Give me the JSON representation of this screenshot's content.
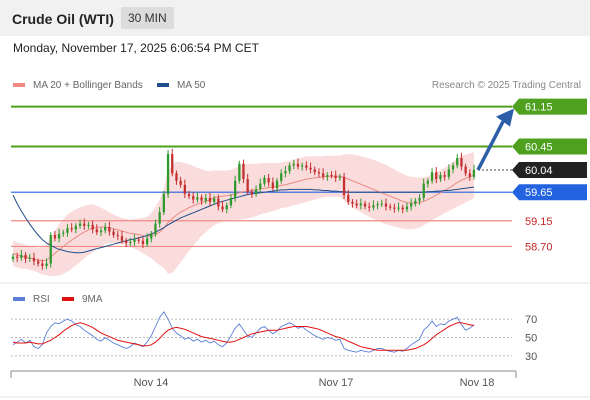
{
  "header": {
    "instrument": "Crude Oil (WTI)",
    "interval": "30 MIN"
  },
  "datetime": "Monday, November 17, 2025 6:06:54 PM CET",
  "legend": {
    "ma20": {
      "label": "MA 20 + Bollinger Bands",
      "color": "#f08a84"
    },
    "ma50": {
      "label": "MA 50",
      "color": "#1f4e8c"
    }
  },
  "credit": "Research © 2025 Trading Central",
  "rsi_legend": {
    "rsi": {
      "label": "RSI",
      "color": "#5b7fd6"
    },
    "ma": {
      "label": "9MA",
      "color": "#e01010"
    }
  },
  "colors": {
    "bull": "#2e9a2e",
    "bear": "#c43030",
    "band": "#fbdcdc",
    "resistance": "#4ea01e",
    "pivot": "#2463e0",
    "support": "#f08a84",
    "arrow": "#2c5ea8"
  },
  "chart_data": [
    {
      "type": "candlestick",
      "ylim": [
        58.2,
        61.3
      ],
      "x_ticks": [
        "Nov 14",
        "Nov 17",
        "Nov 18"
      ],
      "levels": [
        {
          "label": "61.15",
          "value": 61.15,
          "kind": "resistance"
        },
        {
          "label": "60.45",
          "value": 60.45,
          "kind": "resistance"
        },
        {
          "label": "60.04",
          "value": 60.04,
          "kind": "last"
        },
        {
          "label": "59.65",
          "value": 59.65,
          "kind": "pivot"
        },
        {
          "label": "59.15",
          "value": 59.15,
          "kind": "support"
        },
        {
          "label": "58.70",
          "value": 58.7,
          "kind": "support"
        }
      ],
      "close": [
        58.52,
        58.5,
        58.55,
        58.48,
        58.5,
        58.44,
        58.4,
        58.36,
        58.4,
        58.9,
        58.84,
        58.92,
        58.94,
        59.02,
        59.0,
        59.06,
        59.1,
        59.06,
        59.08,
        59.0,
        58.95,
        58.98,
        59.04,
        58.96,
        58.9,
        58.88,
        58.8,
        58.76,
        58.78,
        58.82,
        58.8,
        58.74,
        58.84,
        58.92,
        59.1,
        59.3,
        59.62,
        60.32,
        59.98,
        59.85,
        59.78,
        59.62,
        59.58,
        59.52,
        59.56,
        59.5,
        59.55,
        59.48,
        59.54,
        59.4,
        59.35,
        59.42,
        59.55,
        59.85,
        60.15,
        59.88,
        59.66,
        59.62,
        59.7,
        59.8,
        59.9,
        59.82,
        59.72,
        59.85,
        59.98,
        60.02,
        60.12,
        60.15,
        60.1,
        60.12,
        60.08,
        60.05,
        60.0,
        59.98,
        59.92,
        59.95,
        59.94,
        59.9,
        59.92,
        59.6,
        59.48,
        59.45,
        59.42,
        59.45,
        59.4,
        59.38,
        59.42,
        59.44,
        59.45,
        59.4,
        59.38,
        59.36,
        59.38,
        59.35,
        59.4,
        59.45,
        59.5,
        59.55,
        59.8,
        59.85,
        60.0,
        59.88,
        59.95,
        59.92,
        60.05,
        60.12,
        60.25,
        60.1,
        59.98,
        59.92,
        60.04
      ],
      "ma20": [
        58.58,
        58.55,
        58.53,
        58.52,
        58.5,
        58.48,
        58.46,
        58.45,
        58.46,
        58.52,
        58.58,
        58.64,
        58.7,
        58.76,
        58.81,
        58.86,
        58.91,
        58.95,
        58.99,
        59.02,
        59.03,
        59.04,
        59.04,
        59.03,
        59.01,
        58.99,
        58.97,
        58.95,
        58.93,
        58.92,
        58.91,
        58.89,
        58.88,
        58.89,
        58.91,
        58.95,
        59.02,
        59.12,
        59.19,
        59.25,
        59.3,
        59.34,
        59.38,
        59.41,
        59.44,
        59.47,
        59.49,
        59.52,
        59.55,
        59.57,
        59.58,
        59.59,
        59.6,
        59.62,
        59.64,
        59.66,
        59.67,
        59.68,
        59.69,
        59.71,
        59.72,
        59.73,
        59.74,
        59.75,
        59.77,
        59.78,
        59.8,
        59.82,
        59.84,
        59.86,
        59.88,
        59.89,
        59.9,
        59.91,
        59.92,
        59.93,
        59.93,
        59.93,
        59.93,
        59.91,
        59.88,
        59.85,
        59.82,
        59.79,
        59.76,
        59.73,
        59.7,
        59.67,
        59.64,
        59.61,
        59.58,
        59.55,
        59.52,
        59.49,
        59.47,
        59.46,
        59.46,
        59.47,
        59.49,
        59.52,
        59.56,
        59.6,
        59.64,
        59.68,
        59.72,
        59.77,
        59.82,
        59.86,
        59.89,
        59.92,
        59.95
      ],
      "ma50": [
        59.6,
        59.45,
        59.32,
        59.2,
        59.09,
        58.99,
        58.9,
        58.82,
        58.76,
        58.72,
        58.68,
        58.65,
        58.63,
        58.61,
        58.6,
        58.59,
        58.59,
        58.6,
        58.62,
        58.64,
        58.66,
        58.68,
        58.7,
        58.72,
        58.74,
        58.76,
        58.78,
        58.8,
        58.82,
        58.83,
        58.85,
        58.87,
        58.89,
        58.92,
        58.95,
        58.99,
        59.03,
        59.08,
        59.12,
        59.16,
        59.2,
        59.23,
        59.26,
        59.29,
        59.32,
        59.35,
        59.38,
        59.41,
        59.44,
        59.47,
        59.49,
        59.51,
        59.53,
        59.55,
        59.57,
        59.59,
        59.61,
        59.62,
        59.63,
        59.64,
        59.65,
        59.66,
        59.67,
        59.68,
        59.69,
        59.69,
        59.7,
        59.7,
        59.7,
        59.7,
        59.7,
        59.7,
        59.69,
        59.69,
        59.68,
        59.68,
        59.67,
        59.67,
        59.66,
        59.66,
        59.65,
        59.65,
        59.65,
        59.65,
        59.65,
        59.65,
        59.65,
        59.65,
        59.65,
        59.65,
        59.65,
        59.65,
        59.65,
        59.65,
        59.65,
        59.65,
        59.65,
        59.65,
        59.65,
        59.66,
        59.66,
        59.67,
        59.67,
        59.68,
        59.68,
        59.69,
        59.7,
        59.71,
        59.72,
        59.73,
        59.74
      ],
      "bb_width": [
        0.22,
        0.22,
        0.22,
        0.21,
        0.21,
        0.21,
        0.22,
        0.24,
        0.26,
        0.34,
        0.4,
        0.45,
        0.48,
        0.5,
        0.5,
        0.49,
        0.48,
        0.46,
        0.44,
        0.42,
        0.38,
        0.34,
        0.3,
        0.27,
        0.25,
        0.24,
        0.23,
        0.23,
        0.24,
        0.26,
        0.28,
        0.31,
        0.34,
        0.4,
        0.48,
        0.58,
        0.7,
        0.9,
        0.95,
        0.93,
        0.88,
        0.82,
        0.76,
        0.7,
        0.64,
        0.58,
        0.54,
        0.5,
        0.48,
        0.46,
        0.45,
        0.44,
        0.44,
        0.45,
        0.47,
        0.48,
        0.48,
        0.47,
        0.46,
        0.45,
        0.44,
        0.43,
        0.42,
        0.41,
        0.4,
        0.4,
        0.4,
        0.4,
        0.4,
        0.4,
        0.4,
        0.39,
        0.38,
        0.37,
        0.36,
        0.36,
        0.36,
        0.36,
        0.36,
        0.4,
        0.44,
        0.46,
        0.48,
        0.49,
        0.5,
        0.51,
        0.52,
        0.52,
        0.52,
        0.52,
        0.51,
        0.5,
        0.49,
        0.48,
        0.47,
        0.46,
        0.45,
        0.44,
        0.42,
        0.41,
        0.4,
        0.4,
        0.4,
        0.4,
        0.4,
        0.41,
        0.42,
        0.43,
        0.42,
        0.41,
        0.4
      ]
    },
    {
      "type": "line",
      "title": "RSI",
      "ylim": [
        20,
        80
      ],
      "y_ticks": [
        70,
        50,
        30
      ],
      "series": [
        {
          "name": "RSI",
          "values": [
            42,
            45,
            48,
            44,
            47,
            40,
            38,
            42,
            55,
            62,
            66,
            65,
            68,
            70,
            68,
            64,
            62,
            58,
            55,
            52,
            48,
            46,
            50,
            47,
            44,
            42,
            40,
            38,
            40,
            44,
            42,
            40,
            45,
            52,
            62,
            72,
            78,
            70,
            60,
            55,
            52,
            48,
            50,
            46,
            48,
            45,
            47,
            44,
            46,
            42,
            40,
            44,
            52,
            60,
            65,
            58,
            52,
            50,
            55,
            60,
            62,
            58,
            54,
            57,
            62,
            64,
            66,
            64,
            60,
            62,
            58,
            55,
            52,
            50,
            48,
            50,
            49,
            47,
            48,
            38,
            36,
            35,
            34,
            36,
            35,
            34,
            36,
            38,
            38,
            36,
            35,
            34,
            36,
            35,
            38,
            42,
            45,
            48,
            58,
            62,
            68,
            62,
            65,
            64,
            68,
            70,
            72,
            64,
            58,
            60,
            64
          ]
        },
        {
          "name": "9MA",
          "values": [
            45,
            44,
            44,
            44,
            45,
            44,
            43,
            43,
            45,
            47,
            50,
            53,
            57,
            60,
            63,
            65,
            66,
            65,
            63,
            61,
            58,
            55,
            53,
            51,
            49,
            47,
            46,
            45,
            44,
            43,
            42,
            41,
            41,
            42,
            45,
            49,
            54,
            58,
            60,
            61,
            60,
            59,
            57,
            55,
            53,
            51,
            50,
            49,
            48,
            47,
            46,
            45,
            45,
            46,
            48,
            50,
            52,
            54,
            55,
            56,
            57,
            58,
            58,
            58,
            59,
            60,
            61,
            62,
            62,
            62,
            62,
            61,
            60,
            59,
            57,
            55,
            53,
            51,
            50,
            48,
            46,
            44,
            42,
            40,
            39,
            38,
            37,
            36,
            36,
            36,
            36,
            36,
            36,
            36,
            36,
            37,
            38,
            40,
            42,
            45,
            49,
            53,
            56,
            59,
            62,
            64,
            66,
            66,
            65,
            64,
            63
          ]
        }
      ]
    }
  ]
}
